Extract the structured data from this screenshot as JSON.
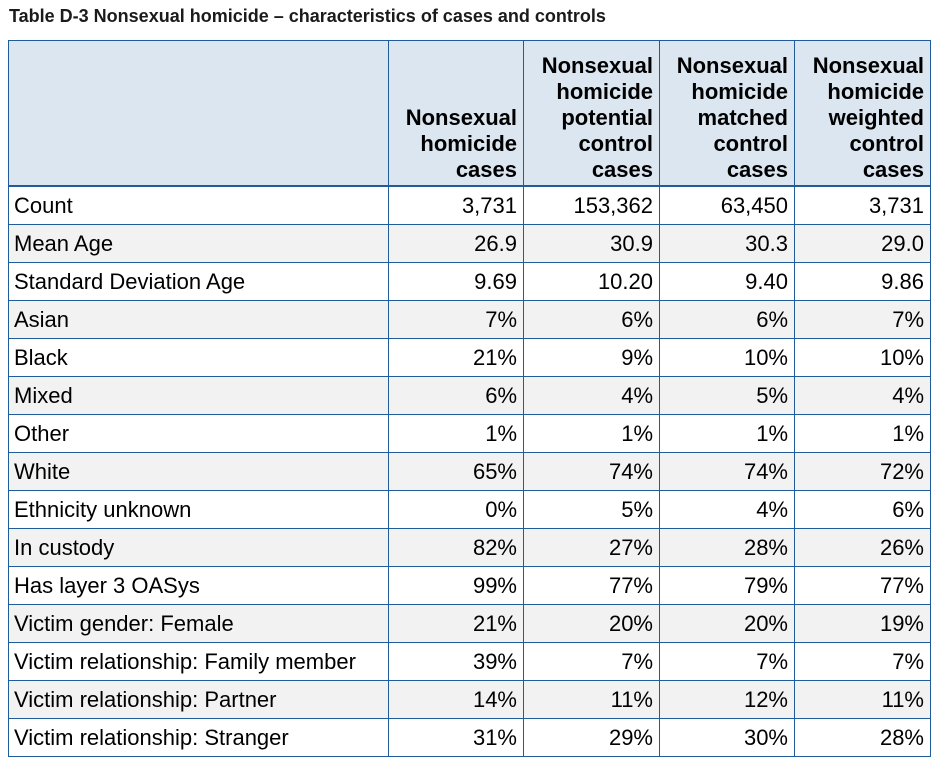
{
  "caption": "Table D-3 Nonsexual homicide – characteristics of cases and controls",
  "header": {
    "columns": [
      [
        "Nonsexual",
        "homicide",
        "cases"
      ],
      [
        "Nonsexual",
        "homicide",
        "potential",
        "control",
        "cases"
      ],
      [
        "Nonsexual",
        "homicide",
        "matched",
        "control",
        "cases"
      ],
      [
        "Nonsexual",
        "homicide",
        "weighted",
        "control",
        "cases"
      ]
    ]
  },
  "rows": [
    {
      "label": "Count",
      "values": [
        "3,731",
        "153,362",
        "63,450",
        "3,731"
      ]
    },
    {
      "label": "Mean Age",
      "values": [
        "26.9",
        "30.9",
        "30.3",
        "29.0"
      ]
    },
    {
      "label": "Standard Deviation Age",
      "values": [
        "9.69",
        "10.20",
        "9.40",
        "9.86"
      ]
    },
    {
      "label": "Asian",
      "values": [
        "7%",
        "6%",
        "6%",
        "7%"
      ]
    },
    {
      "label": "Black",
      "values": [
        "21%",
        "9%",
        "10%",
        "10%"
      ]
    },
    {
      "label": "Mixed",
      "values": [
        "6%",
        "4%",
        "5%",
        "4%"
      ]
    },
    {
      "label": "Other",
      "values": [
        "1%",
        "1%",
        "1%",
        "1%"
      ]
    },
    {
      "label": "White",
      "values": [
        "65%",
        "74%",
        "74%",
        "72%"
      ]
    },
    {
      "label": "Ethnicity unknown",
      "values": [
        "0%",
        "5%",
        "4%",
        "6%"
      ]
    },
    {
      "label": "In custody",
      "values": [
        "82%",
        "27%",
        "28%",
        "26%"
      ]
    },
    {
      "label": "Has layer 3 OASys",
      "values": [
        "99%",
        "77%",
        "79%",
        "77%"
      ]
    },
    {
      "label": "Victim gender: Female",
      "values": [
        "21%",
        "20%",
        "20%",
        "19%"
      ]
    },
    {
      "label": "Victim relationship: Family member",
      "values": [
        "39%",
        "7%",
        "7%",
        "7%"
      ]
    },
    {
      "label": "Victim relationship: Partner",
      "values": [
        "14%",
        "11%",
        "12%",
        "11%"
      ]
    },
    {
      "label": "Victim relationship: Stranger",
      "values": [
        "31%",
        "29%",
        "30%",
        "28%"
      ]
    }
  ],
  "colors": {
    "header_bg": "#dce6f1",
    "shaded_row_bg": "#f2f2f2",
    "border": "#1f5c99"
  }
}
